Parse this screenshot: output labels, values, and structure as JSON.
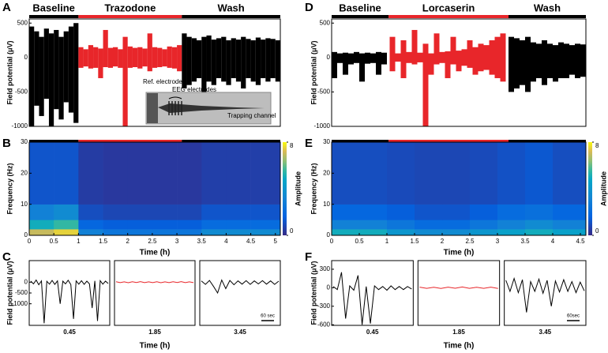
{
  "chart_data": [
    {
      "label": "A",
      "type": "trace",
      "ylabel": "Field potential (μV)",
      "xlim": [
        0,
        5.1
      ],
      "ylim": [
        -1000,
        560
      ],
      "yticks": [
        -1000,
        -500,
        0,
        500
      ],
      "phases": [
        {
          "name": "Baseline",
          "color": "#000000",
          "start": 0,
          "end": 1
        },
        {
          "name": "Trazodone",
          "color": "#e8262a",
          "start": 1,
          "end": 3.1
        },
        {
          "name": "Wash",
          "color": "#000000",
          "start": 3.1,
          "end": 5.1
        }
      ],
      "series": [
        {
          "color": "#000000",
          "x": [
            0.05,
            0.15,
            0.25,
            0.35,
            0.45,
            0.55,
            0.65,
            0.75,
            0.85,
            0.95
          ],
          "high": [
            450,
            380,
            300,
            420,
            350,
            400,
            300,
            380,
            450,
            500
          ],
          "low": [
            -1000,
            -700,
            -850,
            -600,
            -1000,
            -750,
            -900,
            -650,
            -800,
            -950
          ]
        },
        {
          "color": "#e8262a",
          "x": [
            1.05,
            1.15,
            1.25,
            1.35,
            1.45,
            1.55,
            1.65,
            1.75,
            1.85,
            1.95,
            2.05,
            2.15,
            2.25,
            2.35,
            2.45,
            2.55,
            2.65,
            2.75,
            2.85,
            2.95,
            3.05
          ],
          "high": [
            150,
            120,
            180,
            150,
            130,
            400,
            140,
            150,
            120,
            300,
            160,
            140,
            150,
            130,
            350,
            150,
            140,
            120,
            160,
            150,
            180
          ],
          "low": [
            -150,
            -130,
            -160,
            -150,
            -300,
            -140,
            -150,
            -130,
            -150,
            -1000,
            -150,
            -140,
            -160,
            -130,
            -200,
            -150,
            -140,
            -130,
            -150,
            -160,
            -200
          ]
        },
        {
          "color": "#000000",
          "x": [
            3.15,
            3.25,
            3.35,
            3.45,
            3.55,
            3.65,
            3.75,
            3.85,
            3.95,
            4.05,
            4.15,
            4.25,
            4.35,
            4.45,
            4.55,
            4.65,
            4.75,
            4.85,
            4.95,
            5.05
          ],
          "high": [
            350,
            300,
            280,
            250,
            300,
            320,
            260,
            280,
            300,
            250,
            280,
            260,
            300,
            270,
            250,
            290,
            260,
            280,
            270,
            250
          ],
          "low": [
            -450,
            -400,
            -350,
            -300,
            -500,
            -350,
            -400,
            -300,
            -350,
            -400,
            -300,
            -350,
            -450,
            -300,
            -350,
            -400,
            -300,
            -350,
            -300,
            -350
          ]
        }
      ],
      "inset": {
        "labels": [
          "Ref. electrode",
          "EEG electrodes",
          "Trapping channel"
        ]
      }
    },
    {
      "label": "B",
      "type": "spectrogram",
      "xlabel": "Time (h)",
      "ylabel": "Frequency (Hz)",
      "colorbar_label": "Amplitude",
      "xlim": [
        0,
        5.1
      ],
      "xticks": [
        0,
        0.5,
        1,
        1.5,
        2,
        2.5,
        3,
        3.5,
        4,
        4.5,
        5
      ],
      "ylim": [
        0,
        30
      ],
      "yticks": [
        0,
        10,
        20,
        30
      ],
      "clim": [
        0,
        8
      ],
      "cticks": [
        0,
        8
      ],
      "xbins": [
        0,
        0.5,
        1,
        1.5,
        2,
        2.5,
        3,
        3.5,
        4,
        4.5,
        5.1
      ],
      "ybins": [
        0,
        2,
        5,
        10,
        30
      ],
      "values": [
        [
          7,
          7.5,
          3,
          2.5,
          2.5,
          2.5,
          2.5,
          3.5,
          3.5,
          3.5
        ],
        [
          5,
          5.5,
          1.8,
          1.5,
          1.5,
          1.5,
          1.5,
          2,
          2,
          2
        ],
        [
          3,
          3.5,
          1,
          0.8,
          0.8,
          0.8,
          0.8,
          1.2,
          1.2,
          1.2
        ],
        [
          1.2,
          1.2,
          0.5,
          0.4,
          0.4,
          0.4,
          0.4,
          0.6,
          0.6,
          0.6
        ]
      ]
    },
    {
      "label": "C",
      "type": "windows",
      "xlabel": "Time (h)",
      "ylabel": "Field potential (μV)",
      "ylim": [
        -2000,
        1000
      ],
      "yticks": [
        -1000,
        -500,
        0
      ],
      "scalebar": "60 sec",
      "windows": [
        {
          "label": 0.45,
          "color": "#000000",
          "values": [
            50,
            -80,
            100,
            -120,
            60,
            -1900,
            40,
            -90,
            80,
            -100,
            60,
            -1000,
            50,
            -80,
            90,
            -110,
            -1700,
            60,
            -90,
            70,
            -100,
            50,
            -80,
            -1200,
            60,
            -1800,
            70,
            -90,
            50,
            -60
          ]
        },
        {
          "label": 1.85,
          "color": "#e8262a",
          "values": [
            20,
            -20,
            15,
            -25,
            20,
            -15,
            25,
            -20,
            15,
            -20,
            20,
            -25,
            15,
            -20,
            20,
            -15,
            25,
            -20,
            15,
            -20
          ]
        },
        {
          "label": 3.45,
          "color": "#000000",
          "values": [
            60,
            -100,
            80,
            -200,
            -500,
            100,
            -300,
            80,
            -120,
            60,
            -90,
            70,
            -100,
            60,
            -80,
            70,
            -90,
            60,
            -100,
            50
          ]
        }
      ]
    },
    {
      "label": "D",
      "type": "trace",
      "ylabel": "Field potential (μV)",
      "xlim": [
        0,
        4.6
      ],
      "ylim": [
        -1000,
        560
      ],
      "yticks": [
        -1000,
        -500,
        0,
        500
      ],
      "phases": [
        {
          "name": "Baseline",
          "color": "#000000",
          "start": 0,
          "end": 1.03
        },
        {
          "name": "Lorcaserin",
          "color": "#e8262a",
          "start": 1.03,
          "end": 3.2
        },
        {
          "name": "Wash",
          "color": "#000000",
          "start": 3.2,
          "end": 4.6
        }
      ],
      "series": [
        {
          "color": "#000000",
          "x": [
            0.05,
            0.15,
            0.25,
            0.35,
            0.45,
            0.55,
            0.65,
            0.75,
            0.85,
            0.95
          ],
          "high": [
            80,
            60,
            70,
            60,
            80,
            60,
            70,
            60,
            80,
            70
          ],
          "low": [
            -300,
            -80,
            -250,
            -100,
            -80,
            -350,
            -90,
            -80,
            -250,
            -100
          ]
        },
        {
          "color": "#e8262a",
          "x": [
            1.1,
            1.2,
            1.3,
            1.4,
            1.5,
            1.6,
            1.7,
            1.8,
            1.9,
            2.0,
            2.1,
            2.2,
            2.3,
            2.4,
            2.5,
            2.6,
            2.7,
            2.8,
            2.9,
            3.0,
            3.1
          ],
          "high": [
            300,
            60,
            250,
            80,
            400,
            70,
            200,
            60,
            350,
            80,
            90,
            300,
            100,
            120,
            250,
            150,
            200,
            180,
            250,
            300,
            350
          ],
          "low": [
            -200,
            -60,
            -300,
            -80,
            -100,
            -70,
            -1000,
            -250,
            -100,
            -80,
            -300,
            -100,
            -200,
            -120,
            -150,
            -250,
            -200,
            -180,
            -250,
            -300,
            -350
          ]
        },
        {
          "color": "#000000",
          "x": [
            3.25,
            3.35,
            3.45,
            3.55,
            3.65,
            3.75,
            3.85,
            3.95,
            4.05,
            4.15,
            4.25,
            4.35,
            4.45,
            4.55
          ],
          "high": [
            300,
            280,
            250,
            300,
            220,
            200,
            250,
            200,
            180,
            220,
            200,
            180,
            200,
            190
          ],
          "low": [
            -500,
            -450,
            -400,
            -500,
            -350,
            -300,
            -400,
            -300,
            -350,
            -300,
            -300,
            -250,
            -300,
            -280
          ]
        }
      ]
    },
    {
      "label": "E",
      "type": "spectrogram",
      "xlabel": "Time (h)",
      "ylabel": "Frequency (Hz)",
      "colorbar_label": "Amplitude",
      "xlim": [
        0,
        4.6
      ],
      "xticks": [
        0,
        0.5,
        1,
        1.5,
        2,
        2.5,
        3,
        3.5,
        4,
        4.5
      ],
      "ylim": [
        0,
        30
      ],
      "yticks": [
        0,
        10,
        20,
        30
      ],
      "clim": [
        0,
        8
      ],
      "cticks": [
        0,
        8
      ],
      "xbins": [
        0,
        0.5,
        1,
        1.5,
        2,
        2.5,
        3,
        3.5,
        4,
        4.6
      ],
      "ybins": [
        0,
        2,
        5,
        10,
        30
      ],
      "values": [
        [
          5,
          5,
          4,
          3.5,
          3.5,
          4,
          4.5,
          5,
          4.5
        ],
        [
          3,
          3,
          2.5,
          2,
          2,
          2.5,
          3,
          3.5,
          3
        ],
        [
          1.8,
          1.8,
          1.5,
          1.2,
          1.2,
          1.5,
          2,
          2.2,
          1.8
        ],
        [
          1,
          1,
          0.9,
          0.8,
          0.8,
          0.9,
          1.1,
          1.3,
          1
        ]
      ]
    },
    {
      "label": "F",
      "type": "windows",
      "xlabel": "Time (h)",
      "ylabel": "Field potential (μV)",
      "ylim": [
        -610,
        440
      ],
      "yticks": [
        300,
        0,
        -300,
        -600
      ],
      "scalebar": "60sec",
      "windows": [
        {
          "label": 0.45,
          "color": "#000000",
          "values": [
            20,
            -30,
            250,
            -500,
            30,
            -40,
            200,
            -600,
            20,
            -580,
            30,
            -30,
            20,
            -40,
            30,
            -30,
            20,
            -30,
            20,
            -20
          ]
        },
        {
          "label": 1.85,
          "color": "#e8262a",
          "values": [
            10,
            -10,
            8,
            -12,
            10,
            -8,
            12,
            -10,
            8,
            -10,
            10,
            -12
          ]
        },
        {
          "label": 3.45,
          "color": "#000000",
          "values": [
            120,
            -60,
            150,
            -80,
            130,
            -400,
            100,
            -60,
            140,
            -90,
            120,
            -300,
            110,
            -70,
            130,
            -60,
            100,
            -80,
            90,
            -50
          ]
        }
      ]
    }
  ]
}
